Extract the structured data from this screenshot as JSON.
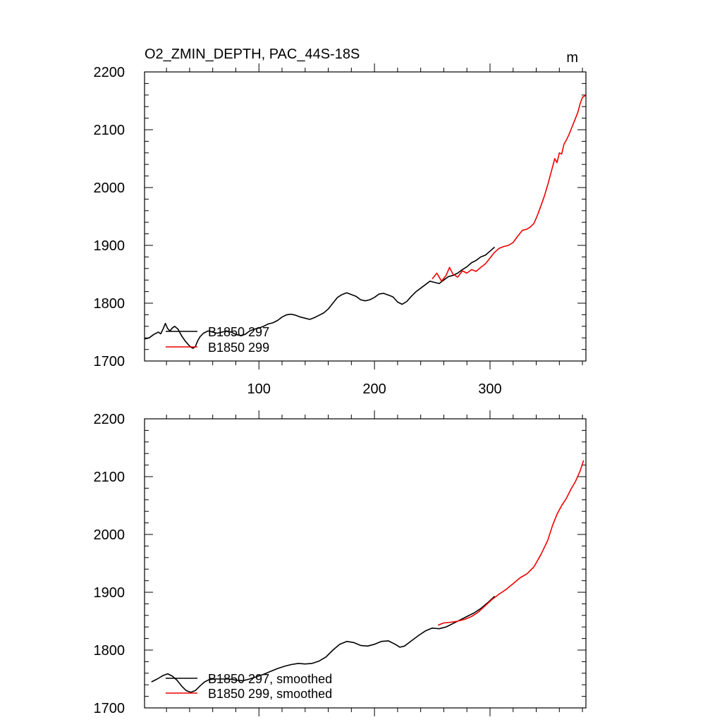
{
  "chart_data": [
    {
      "type": "line",
      "title": "O2_ZMIN_DEPTH, PAC_44S-18S",
      "units": "m",
      "xlim": [
        1,
        383
      ],
      "ylim": [
        1700,
        2200
      ],
      "xticks": [
        100,
        200,
        300
      ],
      "xtick_labels": [
        "100",
        "200",
        "300"
      ],
      "yticks": [
        1700,
        1800,
        1900,
        2000,
        2100,
        2200
      ],
      "ytick_labels": [
        "1700",
        "1800",
        "1900",
        "2000",
        "2100",
        "2200"
      ],
      "legend_position": "bottom-left",
      "series": [
        {
          "name": "B1850 297",
          "color": "#000000",
          "points": [
            [
              1,
              1738
            ],
            [
              5,
              1740
            ],
            [
              9,
              1746
            ],
            [
              13,
              1750
            ],
            [
              15,
              1747
            ],
            [
              17,
              1755
            ],
            [
              19,
              1765
            ],
            [
              21,
              1756
            ],
            [
              23,
              1752
            ],
            [
              25,
              1757
            ],
            [
              27,
              1760
            ],
            [
              30,
              1755
            ],
            [
              33,
              1744
            ],
            [
              36,
              1735
            ],
            [
              39,
              1728
            ],
            [
              41,
              1724
            ],
            [
              43,
              1722
            ],
            [
              45,
              1725
            ],
            [
              47,
              1735
            ],
            [
              49,
              1742
            ],
            [
              52,
              1748
            ],
            [
              56,
              1752
            ],
            [
              60,
              1750
            ],
            [
              64,
              1748
            ],
            [
              68,
              1750
            ],
            [
              72,
              1752
            ],
            [
              76,
              1750
            ],
            [
              80,
              1746
            ],
            [
              84,
              1744
            ],
            [
              88,
              1746
            ],
            [
              92,
              1752
            ],
            [
              96,
              1755
            ],
            [
              100,
              1757
            ],
            [
              104,
              1760
            ],
            [
              108,
              1764
            ],
            [
              112,
              1766
            ],
            [
              116,
              1770
            ],
            [
              120,
              1776
            ],
            [
              124,
              1780
            ],
            [
              128,
              1781
            ],
            [
              132,
              1779
            ],
            [
              136,
              1776
            ],
            [
              140,
              1774
            ],
            [
              144,
              1772
            ],
            [
              148,
              1775
            ],
            [
              152,
              1779
            ],
            [
              156,
              1783
            ],
            [
              160,
              1790
            ],
            [
              164,
              1800
            ],
            [
              168,
              1810
            ],
            [
              172,
              1815
            ],
            [
              176,
              1818
            ],
            [
              180,
              1815
            ],
            [
              184,
              1812
            ],
            [
              188,
              1806
            ],
            [
              192,
              1804
            ],
            [
              196,
              1806
            ],
            [
              200,
              1810
            ],
            [
              204,
              1816
            ],
            [
              208,
              1817
            ],
            [
              212,
              1814
            ],
            [
              216,
              1811
            ],
            [
              220,
              1802
            ],
            [
              224,
              1798
            ],
            [
              228,
              1803
            ],
            [
              232,
              1812
            ],
            [
              236,
              1820
            ],
            [
              240,
              1826
            ],
            [
              244,
              1832
            ],
            [
              248,
              1838
            ],
            [
              252,
              1836
            ],
            [
              256,
              1834
            ],
            [
              260,
              1840
            ],
            [
              264,
              1846
            ],
            [
              268,
              1848
            ],
            [
              272,
              1852
            ],
            [
              276,
              1858
            ],
            [
              280,
              1863
            ],
            [
              284,
              1870
            ],
            [
              288,
              1874
            ],
            [
              292,
              1880
            ],
            [
              296,
              1883
            ],
            [
              300,
              1890
            ],
            [
              304,
              1897
            ]
          ]
        },
        {
          "name": "B1850 299",
          "color": "#ee0000",
          "points": [
            [
              250,
              1842
            ],
            [
              254,
              1852
            ],
            [
              258,
              1838
            ],
            [
              262,
              1848
            ],
            [
              265,
              1862
            ],
            [
              268,
              1850
            ],
            [
              272,
              1845
            ],
            [
              276,
              1856
            ],
            [
              280,
              1852
            ],
            [
              284,
              1858
            ],
            [
              288,
              1855
            ],
            [
              292,
              1862
            ],
            [
              296,
              1868
            ],
            [
              300,
              1878
            ],
            [
              304,
              1888
            ],
            [
              308,
              1895
            ],
            [
              312,
              1898
            ],
            [
              316,
              1900
            ],
            [
              320,
              1905
            ],
            [
              324,
              1916
            ],
            [
              328,
              1926
            ],
            [
              332,
              1928
            ],
            [
              335,
              1932
            ],
            [
              338,
              1938
            ],
            [
              341,
              1952
            ],
            [
              344,
              1968
            ],
            [
              347,
              1985
            ],
            [
              350,
              2005
            ],
            [
              352,
              2020
            ],
            [
              354,
              2035
            ],
            [
              356,
              2050
            ],
            [
              358,
              2043
            ],
            [
              360,
              2060
            ],
            [
              362,
              2058
            ],
            [
              364,
              2075
            ],
            [
              366,
              2082
            ],
            [
              368,
              2090
            ],
            [
              370,
              2100
            ],
            [
              372,
              2110
            ],
            [
              374,
              2120
            ],
            [
              376,
              2130
            ],
            [
              378,
              2145
            ],
            [
              380,
              2156
            ],
            [
              383,
              2160
            ]
          ]
        }
      ]
    },
    {
      "type": "line",
      "title": "",
      "units": "",
      "xlim": [
        1,
        383
      ],
      "ylim": [
        1700,
        2200
      ],
      "xticks": [
        100,
        200,
        300
      ],
      "xtick_labels": [
        "",
        "",
        ""
      ],
      "yticks": [
        1700,
        1800,
        1900,
        2000,
        2100,
        2200
      ],
      "ytick_labels": [
        "1700",
        "1800",
        "1900",
        "2000",
        "2100",
        "2200"
      ],
      "legend_position": "bottom-left",
      "series": [
        {
          "name": "B1850 297, smoothed",
          "color": "#000000",
          "points": [
            [
              7,
              1745
            ],
            [
              12,
              1750
            ],
            [
              17,
              1756
            ],
            [
              21,
              1759
            ],
            [
              25,
              1755
            ],
            [
              29,
              1748
            ],
            [
              33,
              1738
            ],
            [
              37,
              1730
            ],
            [
              41,
              1727
            ],
            [
              45,
              1730
            ],
            [
              49,
              1738
            ],
            [
              53,
              1745
            ],
            [
              57,
              1749
            ],
            [
              62,
              1750
            ],
            [
              68,
              1750
            ],
            [
              74,
              1750
            ],
            [
              80,
              1748
            ],
            [
              86,
              1747
            ],
            [
              92,
              1750
            ],
            [
              98,
              1754
            ],
            [
              104,
              1758
            ],
            [
              110,
              1763
            ],
            [
              116,
              1768
            ],
            [
              122,
              1772
            ],
            [
              128,
              1775
            ],
            [
              134,
              1777
            ],
            [
              140,
              1776
            ],
            [
              146,
              1777
            ],
            [
              152,
              1781
            ],
            [
              158,
              1788
            ],
            [
              164,
              1800
            ],
            [
              170,
              1810
            ],
            [
              176,
              1815
            ],
            [
              182,
              1813
            ],
            [
              188,
              1808
            ],
            [
              194,
              1807
            ],
            [
              200,
              1810
            ],
            [
              206,
              1815
            ],
            [
              212,
              1816
            ],
            [
              218,
              1810
            ],
            [
              222,
              1805
            ],
            [
              226,
              1807
            ],
            [
              232,
              1816
            ],
            [
              238,
              1825
            ],
            [
              244,
              1833
            ],
            [
              250,
              1838
            ],
            [
              256,
              1837
            ],
            [
              262,
              1840
            ],
            [
              268,
              1846
            ],
            [
              274,
              1852
            ],
            [
              280,
              1858
            ],
            [
              286,
              1864
            ],
            [
              292,
              1872
            ],
            [
              298,
              1882
            ],
            [
              304,
              1893
            ]
          ]
        },
        {
          "name": "B1850 299, smoothed",
          "color": "#ee0000",
          "points": [
            [
              255,
              1843
            ],
            [
              260,
              1847
            ],
            [
              266,
              1848
            ],
            [
              272,
              1850
            ],
            [
              278,
              1853
            ],
            [
              284,
              1858
            ],
            [
              290,
              1866
            ],
            [
              296,
              1877
            ],
            [
              302,
              1888
            ],
            [
              308,
              1897
            ],
            [
              314,
              1905
            ],
            [
              320,
              1915
            ],
            [
              326,
              1925
            ],
            [
              332,
              1932
            ],
            [
              338,
              1944
            ],
            [
              344,
              1965
            ],
            [
              350,
              1990
            ],
            [
              354,
              2015
            ],
            [
              358,
              2035
            ],
            [
              362,
              2050
            ],
            [
              366,
              2062
            ],
            [
              370,
              2078
            ],
            [
              374,
              2092
            ],
            [
              378,
              2110
            ],
            [
              381,
              2128
            ]
          ]
        }
      ]
    }
  ]
}
